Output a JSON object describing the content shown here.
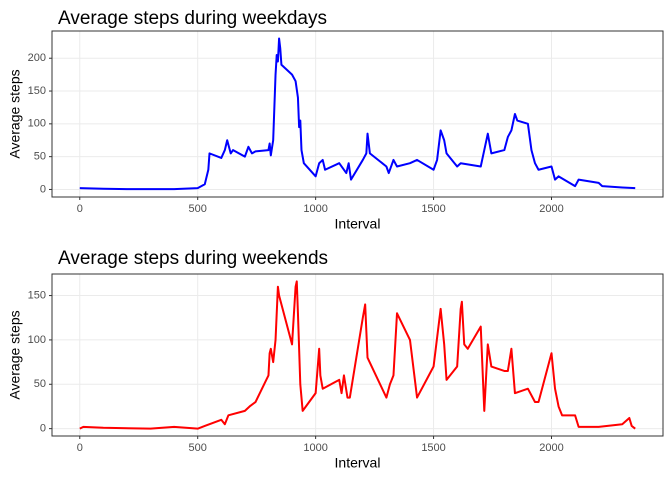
{
  "chart_data": [
    {
      "type": "line",
      "title": "Average steps during weekdays",
      "x_label": "Interval",
      "y_label": "Average steps",
      "xlim": [
        -117.75,
        2472.75
      ],
      "xticks": [
        0,
        500,
        1000,
        1500,
        2000
      ],
      "ylim": [
        -11.5,
        241.5
      ],
      "yticks": [
        0,
        50,
        100,
        150,
        200
      ],
      "grid": true,
      "series": [
        {
          "name": "weekday",
          "color": "#0000ff",
          "x": [
            0,
            100,
            200,
            300,
            400,
            500,
            530,
            545,
            550,
            600,
            615,
            625,
            640,
            650,
            700,
            715,
            730,
            745,
            800,
            805,
            810,
            820,
            830,
            835,
            840,
            845,
            850,
            855,
            900,
            915,
            925,
            930,
            935,
            940,
            950,
            1000,
            1015,
            1030,
            1040,
            1100,
            1130,
            1140,
            1150,
            1200,
            1215,
            1220,
            1230,
            1300,
            1310,
            1330,
            1345,
            1400,
            1430,
            1500,
            1515,
            1530,
            1545,
            1555,
            1600,
            1615,
            1700,
            1715,
            1730,
            1745,
            1800,
            1815,
            1830,
            1845,
            1855,
            1900,
            1915,
            1930,
            1945,
            2000,
            2015,
            2030,
            2100,
            2115,
            2200,
            2215,
            2300,
            2355
          ],
          "values": [
            2,
            1,
            0.5,
            0.5,
            0.5,
            2,
            8,
            30,
            55,
            48,
            60,
            75,
            55,
            60,
            50,
            65,
            55,
            58,
            60,
            70,
            52,
            75,
            175,
            205,
            195,
            230,
            215,
            190,
            175,
            165,
            140,
            95,
            105,
            60,
            40,
            20,
            40,
            45,
            30,
            40,
            25,
            40,
            15,
            45,
            55,
            85,
            55,
            35,
            25,
            45,
            35,
            40,
            45,
            30,
            45,
            90,
            75,
            55,
            35,
            40,
            35,
            60,
            85,
            55,
            60,
            80,
            90,
            115,
            105,
            100,
            60,
            40,
            30,
            35,
            15,
            20,
            5,
            15,
            10,
            5,
            3,
            2
          ]
        }
      ]
    },
    {
      "type": "line",
      "title": "Average steps during weekends",
      "x_label": "Interval",
      "y_label": "Average steps",
      "xlim": [
        -117.75,
        2472.75
      ],
      "xticks": [
        0,
        500,
        1000,
        1500,
        2000
      ],
      "ylim": [
        -8.3,
        174.3
      ],
      "yticks": [
        0,
        50,
        100,
        150
      ],
      "grid": true,
      "series": [
        {
          "name": "weekend",
          "color": "#ff0000",
          "x": [
            0,
            15,
            100,
            300,
            400,
            500,
            530,
            600,
            615,
            630,
            700,
            720,
            745,
            800,
            805,
            810,
            820,
            830,
            840,
            845,
            855,
            900,
            915,
            920,
            925,
            935,
            945,
            1000,
            1015,
            1020,
            1030,
            1100,
            1110,
            1120,
            1135,
            1145,
            1200,
            1210,
            1220,
            1300,
            1315,
            1330,
            1345,
            1400,
            1430,
            1500,
            1530,
            1545,
            1555,
            1600,
            1615,
            1620,
            1630,
            1645,
            1700,
            1715,
            1730,
            1745,
            1800,
            1815,
            1830,
            1845,
            1900,
            1930,
            1945,
            2000,
            2015,
            2030,
            2045,
            2100,
            2115,
            2200,
            2300,
            2330,
            2340,
            2355
          ],
          "values": [
            0,
            2,
            1,
            0,
            2,
            0,
            3,
            10,
            5,
            15,
            20,
            25,
            30,
            60,
            85,
            90,
            75,
            100,
            160,
            150,
            140,
            95,
            160,
            166,
            130,
            50,
            20,
            40,
            90,
            60,
            45,
            55,
            40,
            60,
            35,
            35,
            125,
            140,
            80,
            35,
            50,
            60,
            130,
            100,
            35,
            70,
            135,
            95,
            55,
            70,
            135,
            143,
            95,
            90,
            115,
            20,
            95,
            70,
            65,
            65,
            90,
            40,
            45,
            30,
            30,
            85,
            45,
            25,
            15,
            15,
            2,
            2,
            5,
            12,
            3,
            0
          ]
        }
      ]
    }
  ]
}
